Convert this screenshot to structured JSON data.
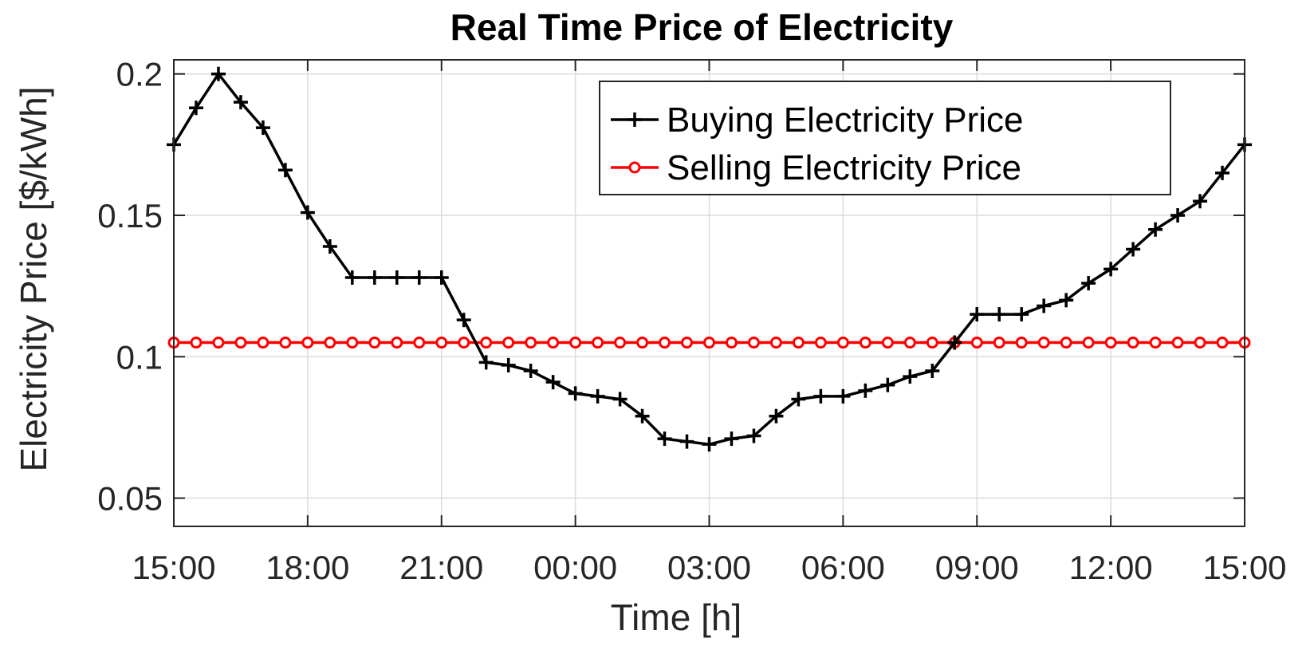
{
  "chart_data": {
    "type": "line",
    "title": "Real Time Price of Electricity",
    "xlabel": "Time [h]",
    "ylabel": "Electricity Price [$/kWh]",
    "xlim": [
      0,
      24
    ],
    "ylim": [
      0.04,
      0.205
    ],
    "x_ticks": [
      0,
      3,
      6,
      9,
      12,
      15,
      18,
      21,
      24
    ],
    "x_tick_labels": [
      "15:00",
      "18:00",
      "21:00",
      "00:00",
      "03:00",
      "06:00",
      "09:00",
      "12:00",
      "15:00"
    ],
    "y_ticks": [
      0.05,
      0.1,
      0.15,
      0.2
    ],
    "y_tick_labels": [
      "0.05",
      "0.1",
      "0.15",
      "0.2"
    ],
    "grid": true,
    "legend_position": "top-right",
    "series": [
      {
        "name": "Buying Electricity Price",
        "color": "#000000",
        "marker": "plus",
        "x": [
          0,
          0.5,
          1,
          1.5,
          2,
          2.5,
          3,
          3.5,
          4,
          4.5,
          5,
          5.5,
          6,
          6.5,
          7,
          7.5,
          8,
          8.5,
          9,
          9.5,
          10,
          10.5,
          11,
          11.5,
          12,
          12.5,
          13,
          13.5,
          14,
          14.5,
          15,
          15.5,
          16,
          16.5,
          17,
          17.5,
          18,
          18.5,
          19,
          19.5,
          20,
          20.5,
          21,
          21.5,
          22,
          22.5,
          23,
          23.5,
          24
        ],
        "values": [
          0.175,
          0.188,
          0.2,
          0.19,
          0.181,
          0.166,
          0.151,
          0.139,
          0.128,
          0.128,
          0.128,
          0.128,
          0.128,
          0.113,
          0.098,
          0.097,
          0.095,
          0.091,
          0.087,
          0.086,
          0.085,
          0.079,
          0.071,
          0.07,
          0.069,
          0.071,
          0.072,
          0.079,
          0.085,
          0.086,
          0.086,
          0.088,
          0.09,
          0.093,
          0.095,
          0.105,
          0.115,
          0.115,
          0.115,
          0.118,
          0.12,
          0.126,
          0.131,
          0.138,
          0.145,
          0.15,
          0.155,
          0.165,
          0.175
        ]
      },
      {
        "name": "Selling Electricity Price",
        "color": "#ff0000",
        "marker": "circle",
        "x": [
          0,
          0.5,
          1,
          1.5,
          2,
          2.5,
          3,
          3.5,
          4,
          4.5,
          5,
          5.5,
          6,
          6.5,
          7,
          7.5,
          8,
          8.5,
          9,
          9.5,
          10,
          10.5,
          11,
          11.5,
          12,
          12.5,
          13,
          13.5,
          14,
          14.5,
          15,
          15.5,
          16,
          16.5,
          17,
          17.5,
          18,
          18.5,
          19,
          19.5,
          20,
          20.5,
          21,
          21.5,
          22,
          22.5,
          23,
          23.5,
          24
        ],
        "values": [
          0.105,
          0.105,
          0.105,
          0.105,
          0.105,
          0.105,
          0.105,
          0.105,
          0.105,
          0.105,
          0.105,
          0.105,
          0.105,
          0.105,
          0.105,
          0.105,
          0.105,
          0.105,
          0.105,
          0.105,
          0.105,
          0.105,
          0.105,
          0.105,
          0.105,
          0.105,
          0.105,
          0.105,
          0.105,
          0.105,
          0.105,
          0.105,
          0.105,
          0.105,
          0.105,
          0.105,
          0.105,
          0.105,
          0.105,
          0.105,
          0.105,
          0.105,
          0.105,
          0.105,
          0.105,
          0.105,
          0.105,
          0.105,
          0.105
        ]
      }
    ]
  }
}
